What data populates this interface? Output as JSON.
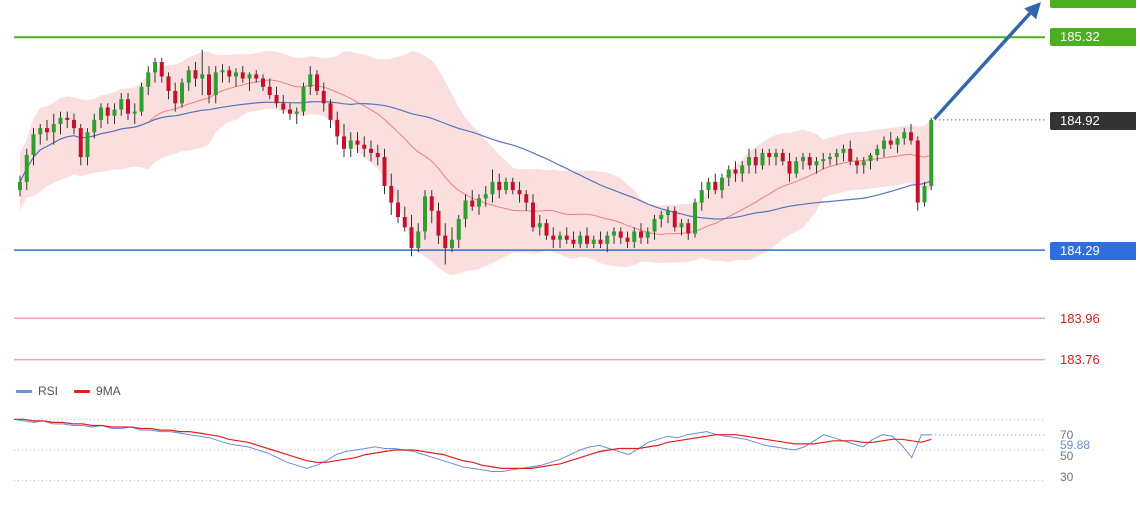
{
  "colors": {
    "up": "#2e9e2e",
    "down": "#c8102e",
    "wick": "#333333",
    "bb_fill": "#f9c9c9",
    "bb_mid": "#f08080",
    "ma_slow": "#5577bb",
    "resistance": "#4caf1f",
    "support": "#2f6ee0",
    "target": "#1f77b4",
    "last": "#333333",
    "red_level": "#f2a7a7",
    "red_text": "#d12020",
    "rsi": "#6a8ed8",
    "rsi_ma": "#e02020",
    "arrow": "#3366aa"
  },
  "price_labels": {
    "target": "",
    "resistance": "185.32",
    "last": "184.92",
    "support": "184.29",
    "level1": "183.96",
    "level2": "183.76"
  },
  "legend": {
    "rsi": "RSI",
    "ma": "9MA"
  },
  "rsi_axis": {
    "tick_70": "70",
    "tick_50": "50",
    "tick_30": "30",
    "current": "59.88"
  },
  "chart_data": [
    {
      "type": "candlestick",
      "title": "",
      "xlabel": "",
      "ylabel": "",
      "ylim": [
        183.7,
        185.5
      ],
      "levels": [
        {
          "name": "resistance",
          "value": 185.32
        },
        {
          "name": "last",
          "value": 184.92
        },
        {
          "name": "support",
          "value": 184.29
        },
        {
          "name": "level1",
          "value": 183.96
        },
        {
          "name": "level2",
          "value": 183.76
        }
      ],
      "ohlc": [
        [
          184.58,
          184.65,
          184.55,
          184.62
        ],
        [
          184.62,
          184.78,
          184.58,
          184.75
        ],
        [
          184.75,
          184.88,
          184.7,
          184.85
        ],
        [
          184.85,
          184.9,
          184.8,
          184.88
        ],
        [
          184.88,
          184.92,
          184.82,
          184.86
        ],
        [
          184.86,
          184.95,
          184.8,
          184.9
        ],
        [
          184.9,
          184.96,
          184.85,
          184.93
        ],
        [
          184.93,
          184.96,
          184.88,
          184.92
        ],
        [
          184.92,
          184.95,
          184.85,
          184.88
        ],
        [
          184.88,
          184.9,
          184.7,
          184.74
        ],
        [
          184.74,
          184.88,
          184.7,
          184.86
        ],
        [
          184.86,
          184.95,
          184.83,
          184.92
        ],
        [
          184.92,
          185.0,
          184.88,
          184.98
        ],
        [
          184.98,
          185.0,
          184.9,
          184.94
        ],
        [
          184.94,
          185.0,
          184.9,
          184.97
        ],
        [
          184.97,
          185.05,
          184.94,
          185.02
        ],
        [
          185.02,
          185.05,
          184.92,
          184.95
        ],
        [
          184.95,
          185.0,
          184.9,
          184.96
        ],
        [
          184.96,
          185.1,
          184.94,
          185.08
        ],
        [
          185.08,
          185.18,
          185.04,
          185.15
        ],
        [
          185.15,
          185.22,
          185.1,
          185.2
        ],
        [
          185.2,
          185.22,
          185.1,
          185.13
        ],
        [
          185.13,
          185.15,
          185.02,
          185.06
        ],
        [
          185.06,
          185.1,
          184.96,
          185.0
        ],
        [
          185.0,
          185.12,
          184.98,
          185.1
        ],
        [
          185.1,
          185.18,
          185.06,
          185.16
        ],
        [
          185.16,
          185.2,
          185.08,
          185.12
        ],
        [
          185.12,
          185.26,
          185.04,
          185.14
        ],
        [
          185.14,
          185.18,
          185.0,
          185.04
        ],
        [
          185.04,
          185.18,
          185.0,
          185.15
        ],
        [
          185.15,
          185.19,
          185.1,
          185.16
        ],
        [
          185.16,
          185.18,
          185.1,
          185.13
        ],
        [
          185.13,
          185.17,
          185.08,
          185.15
        ],
        [
          185.15,
          185.18,
          185.1,
          185.12
        ],
        [
          185.12,
          185.15,
          185.06,
          185.14
        ],
        [
          185.14,
          185.16,
          185.1,
          185.12
        ],
        [
          185.12,
          185.14,
          185.06,
          185.08
        ],
        [
          185.08,
          185.12,
          185.02,
          185.04
        ],
        [
          185.04,
          185.08,
          184.98,
          185.0
        ],
        [
          185.0,
          185.04,
          184.95,
          184.97
        ],
        [
          184.97,
          185.0,
          184.92,
          184.95
        ],
        [
          184.95,
          184.98,
          184.9,
          184.96
        ],
        [
          184.96,
          185.1,
          184.94,
          185.08
        ],
        [
          185.08,
          185.18,
          185.04,
          185.14
        ],
        [
          185.14,
          185.16,
          185.04,
          185.06
        ],
        [
          185.06,
          185.1,
          184.96,
          185.0
        ],
        [
          185.0,
          185.02,
          184.88,
          184.92
        ],
        [
          184.92,
          184.96,
          184.8,
          184.84
        ],
        [
          184.84,
          184.9,
          184.74,
          184.78
        ],
        [
          184.78,
          184.86,
          184.74,
          184.82
        ],
        [
          184.82,
          184.86,
          184.76,
          184.8
        ],
        [
          184.8,
          184.84,
          184.74,
          184.78
        ],
        [
          184.78,
          184.82,
          184.72,
          184.76
        ],
        [
          184.76,
          184.8,
          184.7,
          184.74
        ],
        [
          184.74,
          184.78,
          184.56,
          184.6
        ],
        [
          184.6,
          184.66,
          184.46,
          184.52
        ],
        [
          184.52,
          184.58,
          184.42,
          184.45
        ],
        [
          184.45,
          184.5,
          184.38,
          184.4
        ],
        [
          184.4,
          184.46,
          184.26,
          184.3
        ],
        [
          184.3,
          184.42,
          184.28,
          184.38
        ],
        [
          184.38,
          184.58,
          184.34,
          184.55
        ],
        [
          184.55,
          184.58,
          184.42,
          184.48
        ],
        [
          184.48,
          184.52,
          184.32,
          184.36
        ],
        [
          184.36,
          184.42,
          184.22,
          184.3
        ],
        [
          184.3,
          184.4,
          184.28,
          184.34
        ],
        [
          184.34,
          184.46,
          184.3,
          184.44
        ],
        [
          184.44,
          184.56,
          184.4,
          184.53
        ],
        [
          184.53,
          184.58,
          184.48,
          184.5
        ],
        [
          184.5,
          184.56,
          184.46,
          184.54
        ],
        [
          184.54,
          184.6,
          184.5,
          184.56
        ],
        [
          184.56,
          184.68,
          184.52,
          184.62
        ],
        [
          184.62,
          184.66,
          184.54,
          184.58
        ],
        [
          184.58,
          184.64,
          184.56,
          184.62
        ],
        [
          184.62,
          184.64,
          184.56,
          184.58
        ],
        [
          184.58,
          184.62,
          184.52,
          184.56
        ],
        [
          184.56,
          184.58,
          184.48,
          184.52
        ],
        [
          184.52,
          184.56,
          184.38,
          184.4
        ],
        [
          184.4,
          184.46,
          184.36,
          184.42
        ],
        [
          184.42,
          184.44,
          184.34,
          184.36
        ],
        [
          184.36,
          184.4,
          184.3,
          184.34
        ],
        [
          184.34,
          184.38,
          184.3,
          184.36
        ],
        [
          184.36,
          184.4,
          184.32,
          184.34
        ],
        [
          184.34,
          184.38,
          184.3,
          184.32
        ],
        [
          184.32,
          184.38,
          184.3,
          184.36
        ],
        [
          184.36,
          184.4,
          184.3,
          184.32
        ],
        [
          184.32,
          184.36,
          184.3,
          184.34
        ],
        [
          184.34,
          184.38,
          184.3,
          184.32
        ],
        [
          184.32,
          184.38,
          184.28,
          184.36
        ],
        [
          184.36,
          184.4,
          184.32,
          184.38
        ],
        [
          184.38,
          184.4,
          184.32,
          184.35
        ],
        [
          184.35,
          184.38,
          184.3,
          184.33
        ],
        [
          184.33,
          184.4,
          184.3,
          184.38
        ],
        [
          184.38,
          184.42,
          184.32,
          184.35
        ],
        [
          184.35,
          184.4,
          184.32,
          184.38
        ],
        [
          184.38,
          184.46,
          184.34,
          184.44
        ],
        [
          184.44,
          184.48,
          184.4,
          184.46
        ],
        [
          184.46,
          184.5,
          184.42,
          184.48
        ],
        [
          184.48,
          184.5,
          184.38,
          184.4
        ],
        [
          184.4,
          184.44,
          184.36,
          184.42
        ],
        [
          184.42,
          184.44,
          184.34,
          184.37
        ],
        [
          184.37,
          184.54,
          184.35,
          184.52
        ],
        [
          184.52,
          184.62,
          184.48,
          184.58
        ],
        [
          184.58,
          184.64,
          184.54,
          184.62
        ],
        [
          184.62,
          184.66,
          184.56,
          184.58
        ],
        [
          184.58,
          184.66,
          184.54,
          184.64
        ],
        [
          184.64,
          184.7,
          184.6,
          184.68
        ],
        [
          184.68,
          184.72,
          184.62,
          184.66
        ],
        [
          184.66,
          184.72,
          184.62,
          184.7
        ],
        [
          184.7,
          184.78,
          184.66,
          184.74
        ],
        [
          184.74,
          184.78,
          184.66,
          184.7
        ],
        [
          184.7,
          184.78,
          184.68,
          184.76
        ],
        [
          184.76,
          184.78,
          184.7,
          184.74
        ],
        [
          184.74,
          184.78,
          184.7,
          184.76
        ],
        [
          184.76,
          184.78,
          184.7,
          184.72
        ],
        [
          184.72,
          184.76,
          184.62,
          184.66
        ],
        [
          184.66,
          184.74,
          184.64,
          184.72
        ],
        [
          184.72,
          184.76,
          184.68,
          184.74
        ],
        [
          184.74,
          184.76,
          184.68,
          184.7
        ],
        [
          184.7,
          184.74,
          184.66,
          184.72
        ],
        [
          184.72,
          184.76,
          184.68,
          184.73
        ],
        [
          184.73,
          184.76,
          184.7,
          184.74
        ],
        [
          184.74,
          184.78,
          184.7,
          184.76
        ],
        [
          184.76,
          184.8,
          184.72,
          184.78
        ],
        [
          184.78,
          184.82,
          184.7,
          184.72
        ],
        [
          184.72,
          184.74,
          184.66,
          184.7
        ],
        [
          184.7,
          184.74,
          184.66,
          184.72
        ],
        [
          184.72,
          184.76,
          184.68,
          184.75
        ],
        [
          184.75,
          184.8,
          184.72,
          184.78
        ],
        [
          184.78,
          184.84,
          184.74,
          184.82
        ],
        [
          184.82,
          184.86,
          184.78,
          184.8
        ],
        [
          184.8,
          184.84,
          184.76,
          184.83
        ],
        [
          184.83,
          184.88,
          184.8,
          184.86
        ],
        [
          184.86,
          184.9,
          184.8,
          184.82
        ],
        [
          184.82,
          184.84,
          184.48,
          184.52
        ],
        [
          184.52,
          184.62,
          184.5,
          184.6
        ],
        [
          184.6,
          184.93,
          184.58,
          184.92
        ]
      ]
    },
    {
      "type": "line",
      "title": "",
      "ylim": [
        20,
        80
      ],
      "series": [
        {
          "name": "RSI",
          "values": [
            70,
            69,
            68,
            69,
            67,
            67,
            66,
            66,
            65,
            66,
            64,
            64,
            65,
            63,
            63,
            62,
            62,
            61,
            60,
            59,
            58,
            56,
            54,
            53,
            52,
            50,
            48,
            45,
            42,
            40,
            38,
            40,
            43,
            47,
            49,
            50,
            51,
            52,
            51,
            51,
            50,
            49,
            47,
            45,
            43,
            41,
            39,
            38,
            37,
            36,
            36,
            37,
            38,
            39,
            40,
            42,
            44,
            47,
            50,
            52,
            53,
            51,
            49,
            47,
            51,
            55,
            57,
            59,
            58,
            60,
            61,
            62,
            60,
            59,
            58,
            57,
            55,
            53,
            52,
            51,
            50,
            52,
            56,
            60,
            58,
            56,
            54,
            52,
            57,
            60,
            59,
            53,
            45,
            60,
            59.88
          ]
        },
        {
          "name": "9MA",
          "values": [
            70,
            70,
            69,
            69,
            68,
            68,
            67,
            67,
            66,
            66,
            65,
            65,
            65,
            64,
            64,
            63,
            63,
            62,
            62,
            61,
            60,
            59,
            57,
            56,
            55,
            53,
            51,
            49,
            47,
            45,
            43,
            42,
            42,
            43,
            44,
            45,
            47,
            48,
            49,
            50,
            50,
            50,
            49,
            48,
            47,
            45,
            43,
            42,
            40,
            39,
            38,
            38,
            38,
            38,
            39,
            40,
            41,
            43,
            45,
            47,
            49,
            50,
            51,
            51,
            51,
            52,
            53,
            55,
            56,
            57,
            58,
            59,
            60,
            60,
            60,
            59,
            58,
            57,
            56,
            55,
            54,
            54,
            54,
            55,
            56,
            56,
            56,
            55,
            55,
            56,
            57,
            57,
            56,
            55,
            57
          ]
        }
      ],
      "reference_lines": [
        70,
        50,
        30
      ]
    }
  ]
}
